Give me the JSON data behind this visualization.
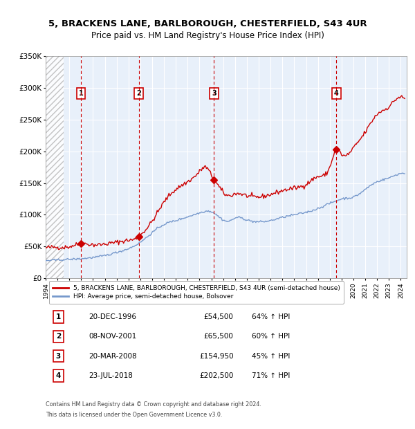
{
  "title_line1": "5, BRACKENS LANE, BARLBOROUGH, CHESTERFIELD, S43 4UR",
  "title_line2": "Price paid vs. HM Land Registry's House Price Index (HPI)",
  "red_label": "5, BRACKENS LANE, BARLBOROUGH, CHESTERFIELD, S43 4UR (semi-detached house)",
  "blue_label": "HPI: Average price, semi-detached house, Bolsover",
  "footer_line1": "Contains HM Land Registry data © Crown copyright and database right 2024.",
  "footer_line2": "This data is licensed under the Open Government Licence v3.0.",
  "sale_points": [
    {
      "index": 1,
      "date": "20-DEC-1996",
      "price": 54500,
      "pct": "64%",
      "year_x": 1996.97
    },
    {
      "index": 2,
      "date": "08-NOV-2001",
      "price": 65500,
      "pct": "60%",
      "year_x": 2001.86
    },
    {
      "index": 3,
      "date": "20-MAR-2008",
      "price": 154950,
      "pct": "45%",
      "year_x": 2008.22
    },
    {
      "index": 4,
      "date": "23-JUL-2018",
      "price": 202500,
      "pct": "71%",
      "year_x": 2018.56
    }
  ],
  "ylim": [
    0,
    350000
  ],
  "xlim_start": 1994.0,
  "xlim_end": 2024.5,
  "hatch_end": 1995.5,
  "background_color": "#dce9f5",
  "plot_bg_color": "#e8f0fa",
  "grid_color": "#ffffff",
  "red_color": "#cc0000",
  "blue_color": "#7799cc",
  "dashed_color": "#cc0000"
}
